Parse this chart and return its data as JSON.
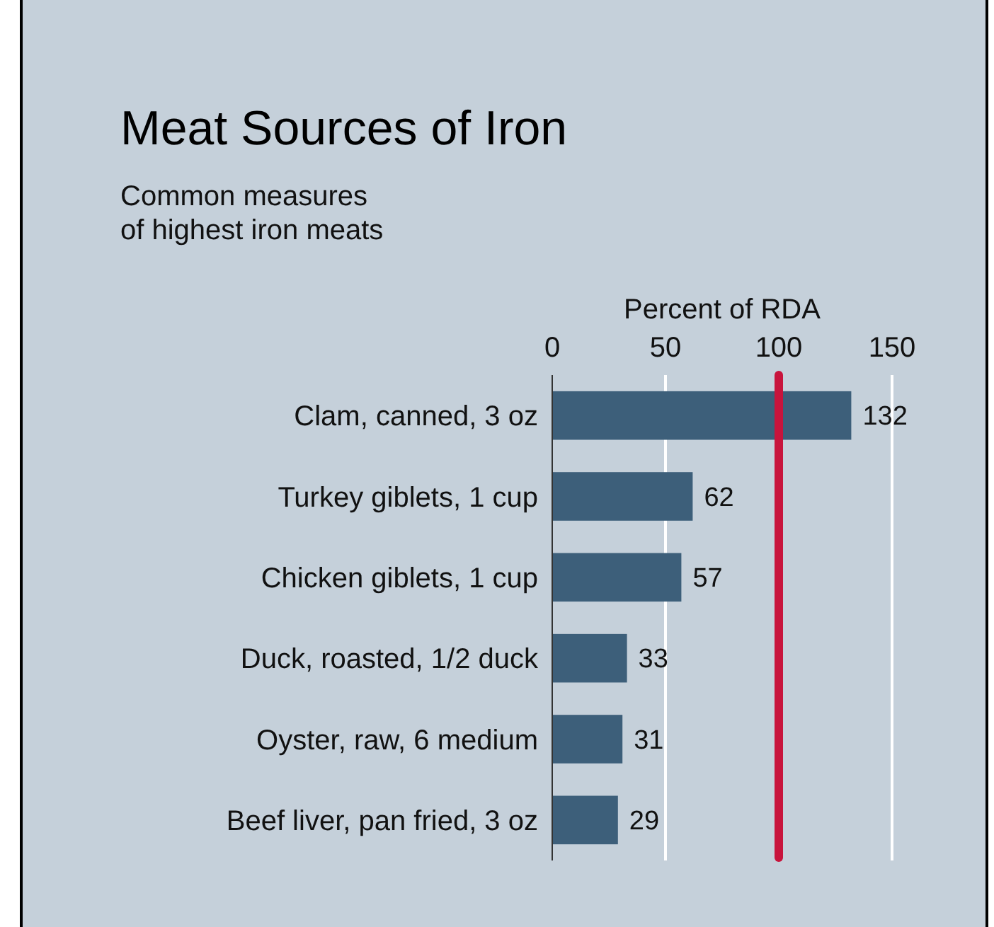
{
  "chart_data": {
    "type": "bar",
    "orientation": "horizontal",
    "title": "Meat Sources of Iron",
    "subtitle": "Common measures\nof highest iron meats",
    "xlabel": "Percent of RDA",
    "categories": [
      "Clam, canned, 3 oz",
      "Turkey giblets, 1 cup",
      "Chicken giblets, 1 cup",
      "Duck, roasted, 1/2 duck",
      "Oyster, raw, 6 medium",
      "Beef liver, pan fried, 3 oz"
    ],
    "values": [
      132,
      62,
      57,
      33,
      31,
      29
    ],
    "color": "#3d5f7a",
    "data_labels": true,
    "xlim": [
      0,
      150
    ],
    "xticks": [
      0,
      50,
      100,
      150
    ],
    "ref_lines": [
      {
        "axis": "x",
        "value": 50,
        "color": "#ffffff"
      },
      {
        "axis": "x",
        "value": 150,
        "color": "#ffffff"
      },
      {
        "axis": "x",
        "value": 100,
        "color": "#c8143c"
      }
    ]
  }
}
